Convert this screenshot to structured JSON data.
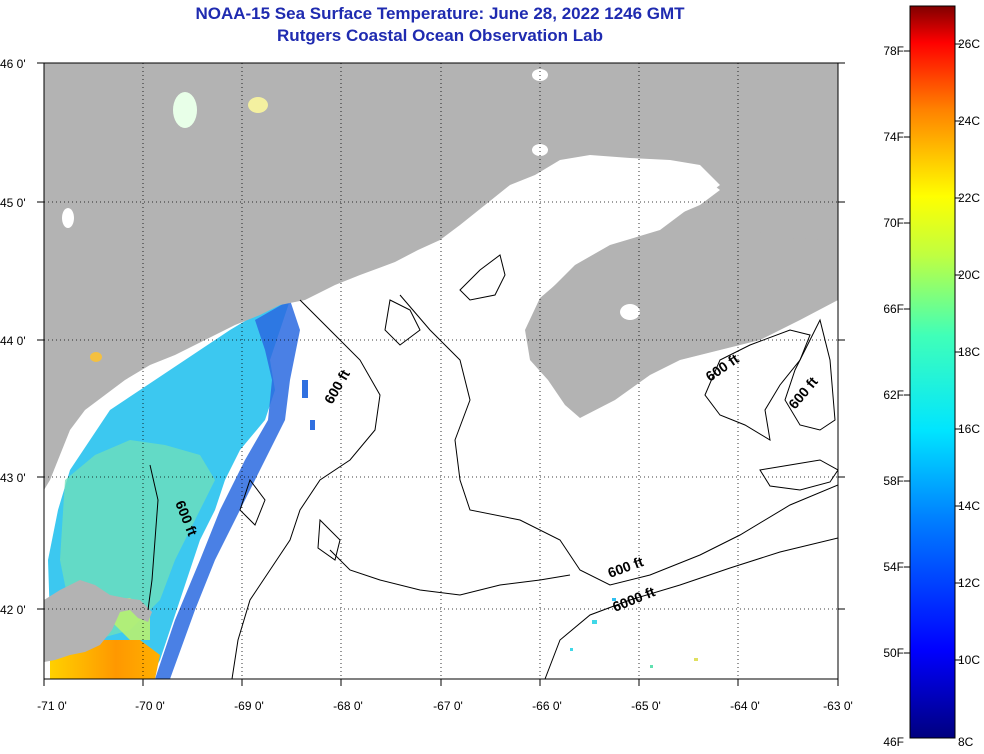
{
  "title": {
    "line1": "NOAA-15 Sea Surface Temperature:  June 28, 2022 1246 GMT",
    "line2": "Rutgers Coastal Ocean Observation Lab"
  },
  "axes": {
    "lat_labels": [
      "46 0'",
      "45 0'",
      "44 0'",
      "43 0'",
      "42 0'"
    ],
    "lon_labels": [
      "-71 0'",
      "-70 0'",
      "-69 0'",
      "-68 0'",
      "-67 0'",
      "-66 0'",
      "-65 0'",
      "-64 0'",
      "-63 0'"
    ],
    "lat_range": [
      41.5,
      46.0
    ],
    "lon_range": [
      -71.0,
      -63.0
    ]
  },
  "contour_labels": [
    "600 ft",
    "600 ft",
    "600 ft",
    "600 ft",
    "600 ft",
    "6000 ft"
  ],
  "colorbar": {
    "fahrenheit_labels": [
      "78F",
      "74F",
      "70F",
      "66F",
      "62F",
      "58F",
      "54F",
      "50F",
      "46F"
    ],
    "celsius_labels": [
      "26C",
      "24C",
      "22C",
      "20C",
      "18C",
      "16C",
      "14C",
      "12C",
      "10C",
      "8C"
    ],
    "range_c": [
      8,
      27
    ]
  },
  "colors": {
    "title": "#1f2bb0",
    "land": "#b3b3b3",
    "ocean_nodata": "#ffffff",
    "contour": "#000000"
  }
}
